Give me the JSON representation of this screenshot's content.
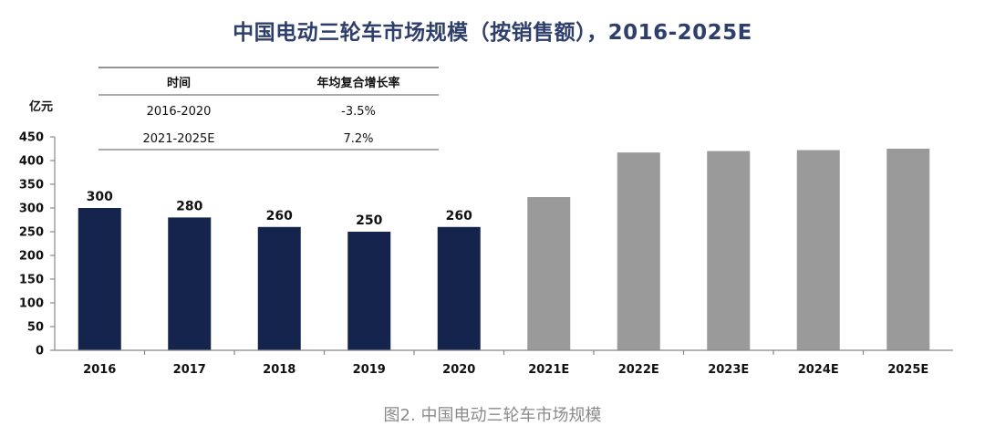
{
  "title": "中国电动三轮车市场规模（按销售额），2016-2025E",
  "caption": "图2. 中国电动三轮车市场规模",
  "cagr_table": {
    "headers": [
      "时间",
      "年均复合增长率"
    ],
    "rows": [
      [
        "2016-2020",
        "-3.5%"
      ],
      [
        "2021-2025E",
        "7.2%"
      ]
    ]
  },
  "chart_data": {
    "type": "bar",
    "title": "中国电动三轮车市场规模（按销售额），2016-2025E",
    "ylabel": "亿元",
    "xlabel": "",
    "ylim": [
      0,
      450
    ],
    "yticks": [
      0,
      50,
      100,
      150,
      200,
      250,
      300,
      350,
      400,
      450
    ],
    "categories": [
      "2016",
      "2017",
      "2018",
      "2019",
      "2020",
      "2021E",
      "2022E",
      "2023E",
      "2024E",
      "2025E"
    ],
    "values": [
      300,
      280,
      260,
      250,
      260,
      323,
      417,
      420,
      422,
      425
    ],
    "data_labels": [
      "300",
      "280",
      "260",
      "250",
      "260",
      null,
      null,
      null,
      null,
      null
    ],
    "grid": false,
    "colors": {
      "historical": "#15244d",
      "forecast": "#9a9a9a",
      "axis": "#888888"
    },
    "bar_styles": [
      "historical",
      "historical",
      "historical",
      "historical",
      "historical",
      "forecast",
      "forecast",
      "forecast",
      "forecast",
      "forecast"
    ]
  }
}
